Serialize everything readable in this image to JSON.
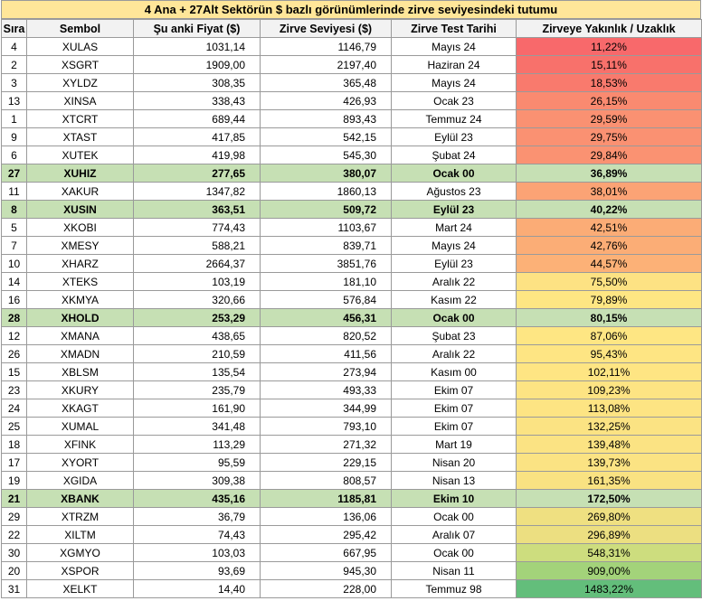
{
  "title": "4 Ana + 27Alt Sektörün $ bazlı görünümlerinde zirve seviyesindeki tutumu",
  "headers": [
    "Sıra",
    "Sembol",
    "Şu anki Fiyat ($)",
    "Zirve Seviyesi ($)",
    "Zirve Test Tarihi",
    "Zirveye Yakınlık /  Uzaklık"
  ],
  "rows": [
    {
      "sira": "4",
      "sembol": "XULAS",
      "fiyat": "1031,14",
      "zirve": "1146,79",
      "tarih": "Mayıs 24",
      "oran": "11,22%",
      "color": "#f8696b",
      "highlight": false
    },
    {
      "sira": "2",
      "sembol": "XSGRT",
      "fiyat": "1909,00",
      "zirve": "2197,40",
      "tarih": "Haziran 24",
      "oran": "15,11%",
      "color": "#f8716b",
      "highlight": false
    },
    {
      "sira": "3",
      "sembol": "XYLDZ",
      "fiyat": "308,35",
      "zirve": "365,48",
      "tarih": "Mayıs 24",
      "oran": "18,53%",
      "color": "#f97a6d",
      "highlight": false
    },
    {
      "sira": "13",
      "sembol": "XINSA",
      "fiyat": "338,43",
      "zirve": "426,93",
      "tarih": "Ocak 23",
      "oran": "26,15%",
      "color": "#fa8a70",
      "highlight": false
    },
    {
      "sira": "1",
      "sembol": "XTCRT",
      "fiyat": "689,44",
      "zirve": "893,43",
      "tarih": "Temmuz 24",
      "oran": "29,59%",
      "color": "#fa9172",
      "highlight": false
    },
    {
      "sira": "9",
      "sembol": "XTAST",
      "fiyat": "417,85",
      "zirve": "542,15",
      "tarih": "Eylül 23",
      "oran": "29,75%",
      "color": "#fa9172",
      "highlight": false
    },
    {
      "sira": "6",
      "sembol": "XUTEK",
      "fiyat": "419,98",
      "zirve": "545,30",
      "tarih": "Şubat 24",
      "oran": "29,84%",
      "color": "#fa9272",
      "highlight": false
    },
    {
      "sira": "27",
      "sembol": "XUHIZ",
      "fiyat": "277,65",
      "zirve": "380,07",
      "tarih": "Ocak 00",
      "oran": "36,89%",
      "color": "#fba174",
      "highlight": true
    },
    {
      "sira": "11",
      "sembol": "XAKUR",
      "fiyat": "1347,82",
      "zirve": "1860,13",
      "tarih": "Ağustos 23",
      "oran": "38,01%",
      "color": "#fba375",
      "highlight": false
    },
    {
      "sira": "8",
      "sembol": "XUSIN",
      "fiyat": "363,51",
      "zirve": "509,72",
      "tarih": "Eylül 23",
      "oran": "40,22%",
      "color": "#fba775",
      "highlight": true
    },
    {
      "sira": "5",
      "sembol": "XKOBI",
      "fiyat": "774,43",
      "zirve": "1103,67",
      "tarih": "Mart 24",
      "oran": "42,51%",
      "color": "#fbac76",
      "highlight": false
    },
    {
      "sira": "7",
      "sembol": "XMESY",
      "fiyat": "588,21",
      "zirve": "839,71",
      "tarih": "Mayıs 24",
      "oran": "42,76%",
      "color": "#fbad76",
      "highlight": false
    },
    {
      "sira": "10",
      "sembol": "XHARZ",
      "fiyat": "2664,37",
      "zirve": "3851,76",
      "tarih": "Eylül 23",
      "oran": "44,57%",
      "color": "#fcb177",
      "highlight": false
    },
    {
      "sira": "14",
      "sembol": "XTEKS",
      "fiyat": "103,19",
      "zirve": "181,10",
      "tarih": "Aralık 22",
      "oran": "75,50%",
      "color": "#fde283",
      "highlight": false
    },
    {
      "sira": "16",
      "sembol": "XKMYA",
      "fiyat": "320,66",
      "zirve": "576,84",
      "tarih": "Kasım 22",
      "oran": "79,89%",
      "color": "#fee683",
      "highlight": false
    },
    {
      "sira": "28",
      "sembol": "XHOLD",
      "fiyat": "253,29",
      "zirve": "456,31",
      "tarih": "Ocak 00",
      "oran": "80,15%",
      "color": "#fee683",
      "highlight": true
    },
    {
      "sira": "12",
      "sembol": "XMANA",
      "fiyat": "438,65",
      "zirve": "820,52",
      "tarih": "Şubat 23",
      "oran": "87,06%",
      "color": "#fee683",
      "highlight": false
    },
    {
      "sira": "26",
      "sembol": "XMADN",
      "fiyat": "210,59",
      "zirve": "411,56",
      "tarih": "Aralık 22",
      "oran": "95,43%",
      "color": "#fee583",
      "highlight": false
    },
    {
      "sira": "15",
      "sembol": "XBLSM",
      "fiyat": "135,54",
      "zirve": "273,94",
      "tarih": "Kasım 00",
      "oran": "102,11%",
      "color": "#fee583",
      "highlight": false
    },
    {
      "sira": "23",
      "sembol": "XKURY",
      "fiyat": "235,79",
      "zirve": "493,33",
      "tarih": "Ekim 07",
      "oran": "109,23%",
      "color": "#fde483",
      "highlight": false
    },
    {
      "sira": "24",
      "sembol": "XKAGT",
      "fiyat": "161,90",
      "zirve": "344,99",
      "tarih": "Ekim 07",
      "oran": "113,08%",
      "color": "#fde483",
      "highlight": false
    },
    {
      "sira": "25",
      "sembol": "XUMAL",
      "fiyat": "341,48",
      "zirve": "793,10",
      "tarih": "Ekim 07",
      "oran": "132,25%",
      "color": "#fbe383",
      "highlight": false
    },
    {
      "sira": "18",
      "sembol": "XFINK",
      "fiyat": "113,29",
      "zirve": "271,32",
      "tarih": "Mart 19",
      "oran": "139,48%",
      "color": "#fbe383",
      "highlight": false
    },
    {
      "sira": "17",
      "sembol": "XYORT",
      "fiyat": "95,59",
      "zirve": "229,15",
      "tarih": "Nisan 20",
      "oran": "139,73%",
      "color": "#fbe383",
      "highlight": false
    },
    {
      "sira": "19",
      "sembol": "XGIDA",
      "fiyat": "309,38",
      "zirve": "808,57",
      "tarih": "Nisan 13",
      "oran": "161,35%",
      "color": "#f9e282",
      "highlight": false
    },
    {
      "sira": "21",
      "sembol": "XBANK",
      "fiyat": "435,16",
      "zirve": "1185,81",
      "tarih": "Ekim 10",
      "oran": "172,50%",
      "color": "#f8e182",
      "highlight": true
    },
    {
      "sira": "29",
      "sembol": "XTRZM",
      "fiyat": "36,79",
      "zirve": "136,06",
      "tarih": "Ocak 00",
      "oran": "269,80%",
      "color": "#efe081",
      "highlight": false
    },
    {
      "sira": "22",
      "sembol": "XILTM",
      "fiyat": "74,43",
      "zirve": "295,42",
      "tarih": "Aralık 07",
      "oran": "296,89%",
      "color": "#ecdf81",
      "highlight": false
    },
    {
      "sira": "30",
      "sembol": "XGMYO",
      "fiyat": "103,03",
      "zirve": "667,95",
      "tarih": "Ocak 00",
      "oran": "548,31%",
      "color": "#cddd7e",
      "highlight": false
    },
    {
      "sira": "20",
      "sembol": "XSPOR",
      "fiyat": "93,69",
      "zirve": "945,30",
      "tarih": "Nisan 11",
      "oran": "909,00%",
      "color": "#a3d37a",
      "highlight": false
    },
    {
      "sira": "31",
      "sembol": "XELKT",
      "fiyat": "14,40",
      "zirve": "228,00",
      "tarih": "Temmuz 98",
      "oran": "1483,22%",
      "color": "#63be7b",
      "highlight": false
    }
  ]
}
